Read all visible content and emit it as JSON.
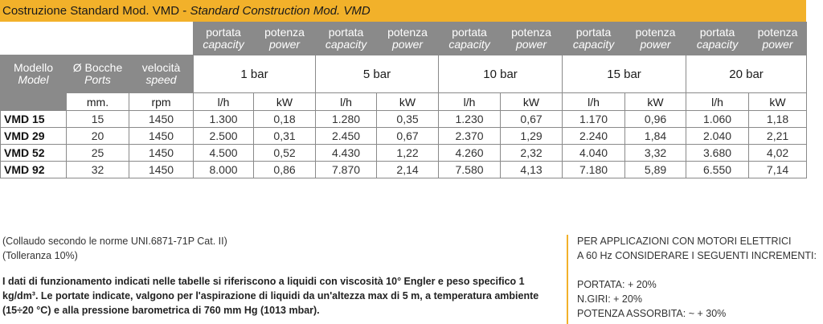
{
  "title": {
    "main": "Costruzione Standard Mod. VMD",
    "sep": " - ",
    "english": "Standard Construction Mod. VMD"
  },
  "header": {
    "portata": "portata",
    "capacity": "capacity",
    "potenza": "potenza",
    "power": "power",
    "modello": "Modello",
    "model": "Model",
    "bocche": "Ø Bocche",
    "ports": "Ports",
    "velocita": "velocità",
    "speed": "speed"
  },
  "pressures": [
    "1 bar",
    "5 bar",
    "10 bar",
    "15 bar",
    "20 bar"
  ],
  "units": {
    "ports": "mm.",
    "speed": "rpm",
    "flow": "l/h",
    "power": "kW"
  },
  "rows": [
    {
      "model": "VMD   15",
      "port": "15",
      "rpm": "1450",
      "vals": [
        "1.300",
        "0,18",
        "1.280",
        "0,35",
        "1.230",
        "0,67",
        "1.170",
        "0,96",
        "1.060",
        "1,18"
      ]
    },
    {
      "model": "VMD   29",
      "port": "20",
      "rpm": "1450",
      "vals": [
        "2.500",
        "0,31",
        "2.450",
        "0,67",
        "2.370",
        "1,29",
        "2.240",
        "1,84",
        "2.040",
        "2,21"
      ]
    },
    {
      "model": "VMD   52",
      "port": "25",
      "rpm": "1450",
      "vals": [
        "4.500",
        "0,52",
        "4.430",
        "1,22",
        "4.260",
        "2,32",
        "4.040",
        "3,32",
        "3.680",
        "4,02"
      ]
    },
    {
      "model": "VMD   92",
      "port": "32",
      "rpm": "1450",
      "vals": [
        "8.000",
        "0,86",
        "7.870",
        "2,14",
        "7.580",
        "4,13",
        "7.180",
        "5,89",
        "6.550",
        "7,14"
      ]
    }
  ],
  "notes": {
    "collaudo": "(Collaudo secondo le norme UNI.6871-71P Cat. II)",
    "tolleranza": "(Tolleranza 10%)",
    "paragraph": "I dati di funzionamento indicati nelle tabelle si riferiscono a liquidi con viscosità 10° Engler e peso specifico 1 kg/dm³. Le portate indicate, valgono per l'aspirazione di liquidi da un'altezza max di 5 m, a temperatura ambiente (15÷20 °C) e alla pressione barometrica di 760 mm Hg (1013 mbar)."
  },
  "side": {
    "line1": "PER APPLICAZIONI CON MOTORI ELETTRICI",
    "line2": "A 60 Hz CONSIDERARE I SEGUENTI INCREMENTI:",
    "portata": "PORTATA: + 20%",
    "giri": "N.GIRI: + 20%",
    "potenza": "POTENZA ASSORBITA: ~ + 30%"
  },
  "colors": {
    "accent": "#f2b12a",
    "header_grey": "#8a8a8a"
  }
}
